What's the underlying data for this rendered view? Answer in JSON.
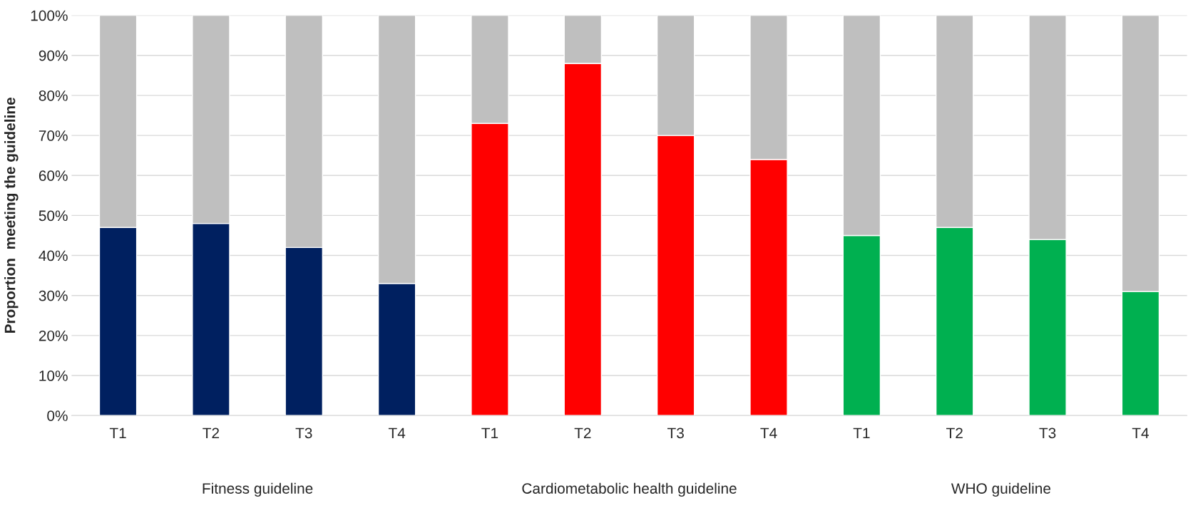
{
  "chart_data": {
    "type": "bar",
    "stacked": true,
    "ylabel": "Proportion  meeting the guideline",
    "categories": [
      "T1",
      "T2",
      "T3",
      "T4",
      "T1",
      "T2",
      "T3",
      "T4",
      "T1",
      "T2",
      "T3",
      "T4"
    ],
    "series": [
      {
        "colors": [
          "#002060",
          "#002060",
          "#002060",
          "#002060",
          "#ff0000",
          "#ff0000",
          "#ff0000",
          "#ff0000",
          "#00b050",
          "#00b050",
          "#00b050",
          "#00b050"
        ],
        "values": [
          47,
          48,
          42,
          33,
          73,
          88,
          70,
          64,
          45,
          47,
          44,
          31
        ]
      },
      {
        "color": "#bfbfbf",
        "values": [
          53,
          52,
          58,
          67,
          27,
          12,
          30,
          36,
          55,
          53,
          56,
          69
        ]
      }
    ],
    "ylim": [
      0,
      100
    ],
    "yticks": [
      {
        "value": 0,
        "label": "0%"
      },
      {
        "value": 10,
        "label": "10%"
      },
      {
        "value": 20,
        "label": "20%"
      },
      {
        "value": 30,
        "label": "30%"
      },
      {
        "value": 40,
        "label": "40%"
      },
      {
        "value": 50,
        "label": "50%"
      },
      {
        "value": 60,
        "label": "60%"
      },
      {
        "value": 70,
        "label": "70%"
      },
      {
        "value": 80,
        "label": "80%"
      },
      {
        "value": 90,
        "label": "90%"
      },
      {
        "value": 100,
        "label": "100%"
      }
    ],
    "grid": "y",
    "annotations": [
      "Fitness guideline",
      "Cardiometabolic health guideline",
      "WHO guideline"
    ]
  }
}
